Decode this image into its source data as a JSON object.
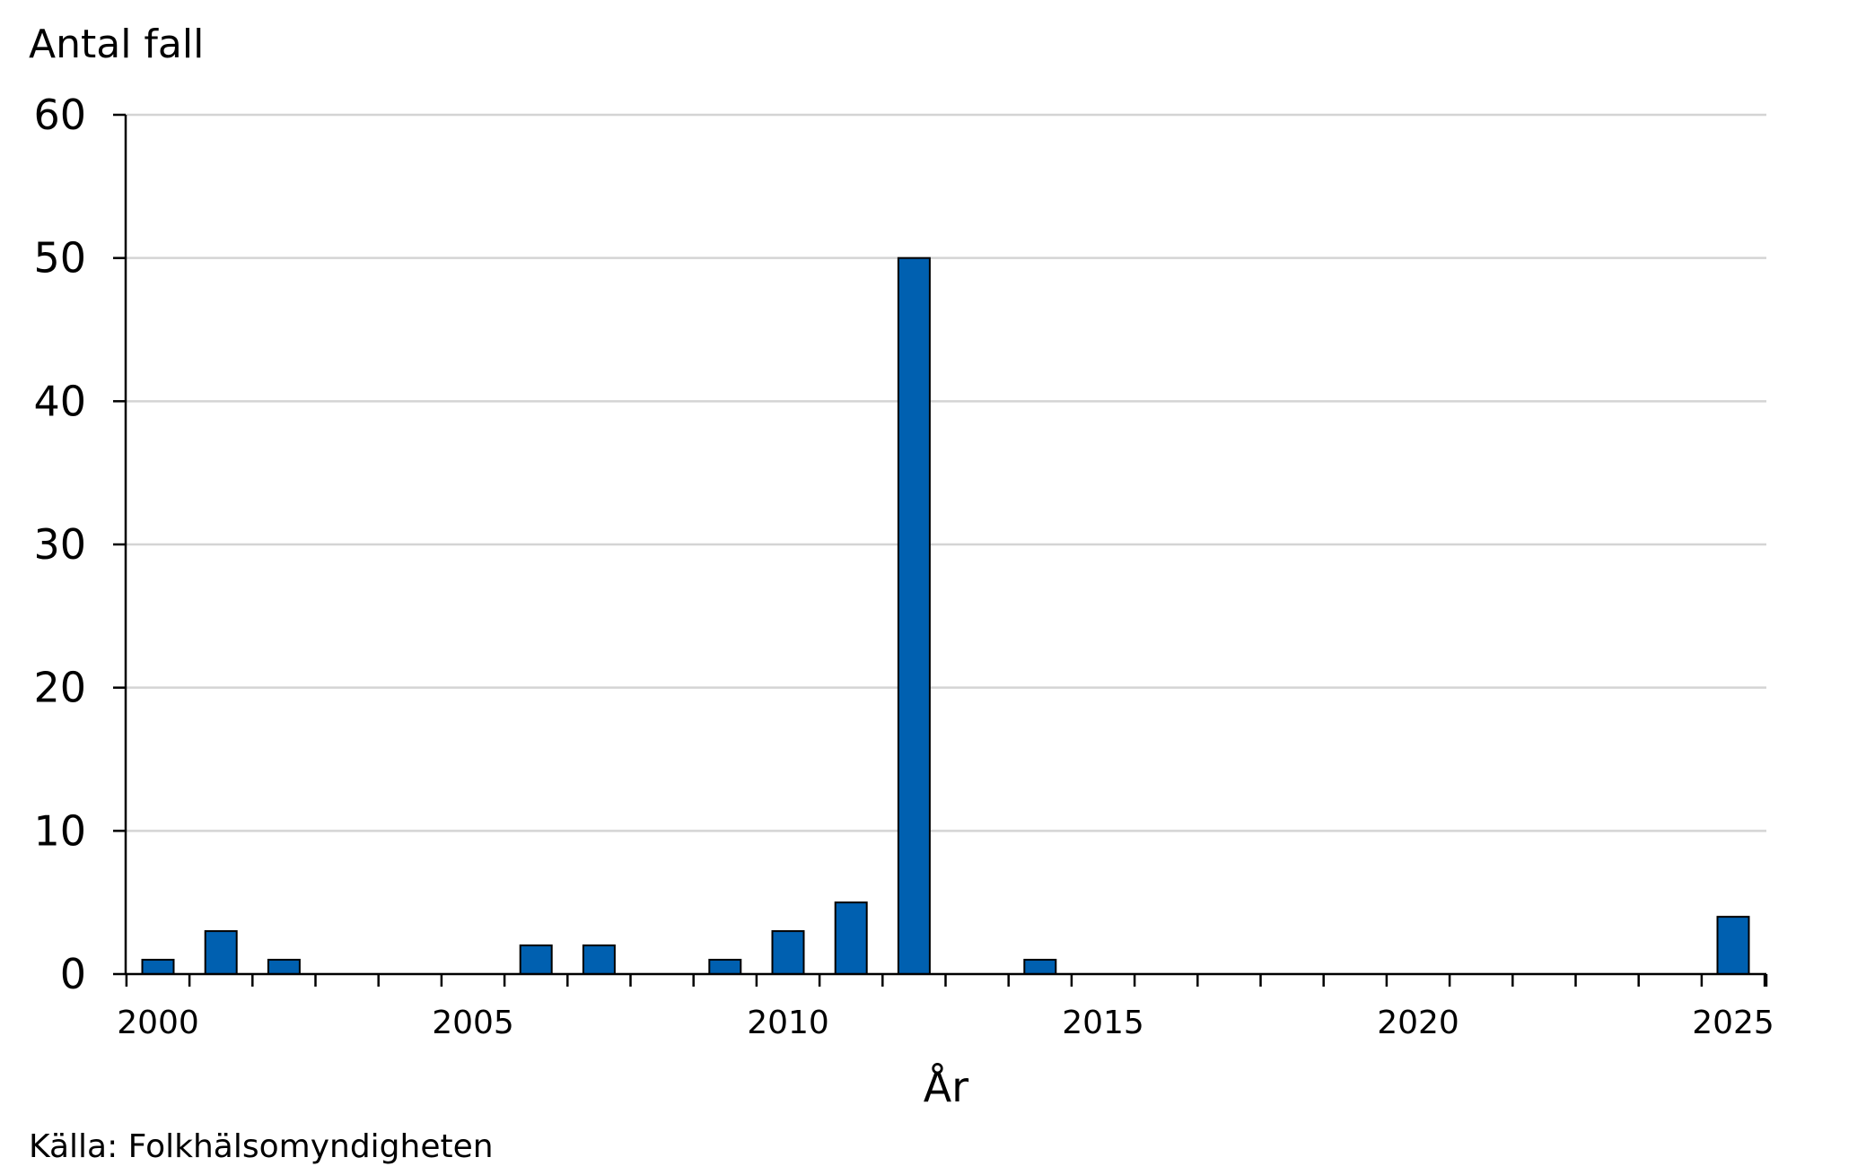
{
  "chart_data": {
    "type": "bar",
    "title": "",
    "ylabel": "Antal fall",
    "xlabel": "År",
    "source": "Källa: Folkhälsomyndigheten",
    "ylim": [
      0,
      60
    ],
    "yticks": [
      0,
      10,
      20,
      30,
      40,
      50,
      60
    ],
    "xlim": [
      2000,
      2025
    ],
    "xtick_labels": [
      "2000",
      "2005",
      "2010",
      "2015",
      "2020",
      "2025"
    ],
    "grid": true,
    "bar_color": "#0060B0",
    "categories": [
      2000,
      2001,
      2002,
      2003,
      2004,
      2005,
      2006,
      2007,
      2008,
      2009,
      2010,
      2011,
      2012,
      2013,
      2014,
      2015,
      2016,
      2017,
      2018,
      2019,
      2020,
      2021,
      2022,
      2023,
      2024,
      2025
    ],
    "values": [
      1,
      3,
      1,
      0,
      0,
      0,
      2,
      2,
      0,
      1,
      3,
      5,
      50,
      0,
      1,
      0,
      0,
      0,
      0,
      0,
      0,
      0,
      0,
      0,
      0,
      4
    ]
  }
}
